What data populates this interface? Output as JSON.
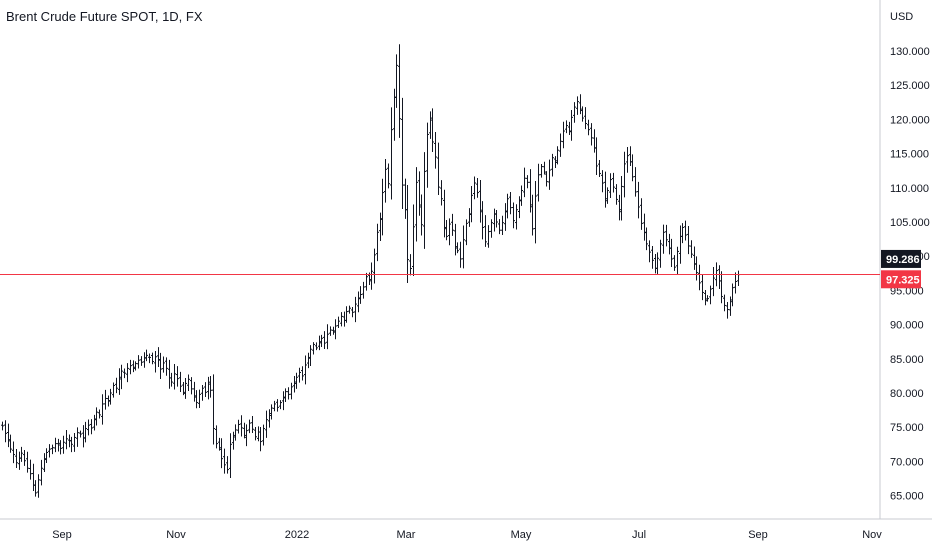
{
  "chart_data": {
    "type": "ohlc",
    "title": "Brent Crude Future SPOT, 1D, FX",
    "currency": "USD",
    "x_tick_labels": [
      "Sep",
      "Nov",
      "2022",
      "Mar",
      "May",
      "Jul",
      "Sep",
      "Nov"
    ],
    "y_tick_labels": [
      "65.000",
      "70.000",
      "75.000",
      "80.000",
      "85.000",
      "90.000",
      "95.000",
      "100.000",
      "105.000",
      "110.000",
      "115.000",
      "120.000",
      "125.000",
      "130.000"
    ],
    "ylim": [
      62,
      133
    ],
    "grid": false,
    "last_price_label": "97.325",
    "marker_price_label": "99.286",
    "reference_line": 97.325,
    "daily_closes": [
      75.2,
      74.1,
      73.0,
      71.8,
      71.0,
      69.8,
      70.5,
      71.2,
      70.1,
      69.0,
      68.2,
      66.5,
      65.4,
      67.3,
      69.0,
      70.4,
      71.3,
      71.8,
      72.0,
      72.6,
      72.4,
      71.9,
      72.8,
      73.3,
      73.0,
      72.5,
      73.5,
      74.2,
      74.0,
      73.4,
      74.8,
      75.3,
      74.9,
      76.1,
      77.2,
      76.8,
      78.4,
      79.2,
      78.9,
      80.0,
      81.1,
      80.7,
      82.3,
      83.2,
      82.9,
      83.6,
      84.0,
      83.6,
      84.3,
      84.8,
      84.5,
      85.1,
      85.5,
      85.2,
      84.6,
      85.3,
      84.8,
      83.5,
      84.4,
      83.6,
      82.2,
      81.6,
      82.8,
      82.1,
      81.0,
      80.1,
      81.4,
      82.0,
      80.6,
      79.4,
      78.6,
      79.8,
      80.7,
      80.1,
      81.3,
      80.4,
      74.8,
      72.6,
      72.0,
      70.4,
      69.5,
      68.8,
      72.5,
      73.8,
      74.6,
      75.4,
      74.9,
      73.8,
      74.5,
      75.6,
      74.7,
      73.6,
      74.3,
      72.9,
      74.8,
      76.1,
      77.0,
      77.8,
      78.4,
      77.9,
      78.6,
      79.4,
      80.2,
      79.8,
      80.9,
      81.6,
      82.3,
      83.0,
      82.5,
      84.1,
      85.2,
      86.4,
      87.1,
      86.6,
      87.5,
      88.0,
      87.3,
      88.6,
      89.2,
      88.9,
      89.8,
      90.5,
      91.2,
      90.6,
      91.9,
      92.4,
      91.8,
      93.0,
      93.9,
      94.4,
      95.5,
      97.0,
      96.4,
      97.8,
      100.2,
      103.5,
      105.5,
      109.3,
      112.7,
      110.6,
      118.5,
      123.2,
      127.9,
      120.1,
      110.4,
      106.8,
      99.5,
      98.2,
      104.3,
      110.8,
      107.2,
      104.6,
      112.4,
      117.8,
      119.9,
      116.7,
      114.5,
      110.1,
      108.4,
      104.2,
      102.9,
      104.7,
      103.8,
      101.2,
      100.8,
      99.6,
      102.4,
      104.8,
      106.1,
      108.9,
      110.7,
      109.3,
      106.5,
      104.2,
      102.1,
      103.6,
      104.9,
      106.2,
      105.0,
      103.8,
      104.9,
      106.6,
      108.4,
      107.1,
      105.2,
      106.8,
      108.1,
      109.6,
      111.4,
      110.8,
      107.5,
      104.0,
      108.8,
      111.9,
      113.1,
      112.3,
      110.9,
      112.6,
      114.4,
      113.7,
      115.5,
      116.8,
      118.3,
      119.1,
      118.2,
      120.3,
      121.8,
      122.6,
      121.5,
      120.2,
      119.4,
      118.5,
      117.3,
      115.8,
      113.2,
      112.1,
      110.7,
      108.4,
      109.6,
      111.2,
      110.1,
      108.3,
      106.8,
      110.2,
      113.5,
      114.7,
      113.8,
      111.6,
      109.4,
      107.2,
      104.8,
      103.5,
      101.8,
      100.6,
      99.4,
      98.2,
      99.7,
      101.8,
      103.5,
      102.4,
      101.2,
      99.6,
      98.4,
      100.7,
      102.9,
      104.2,
      103.1,
      101.5,
      100.3,
      98.9,
      97.6,
      96.1,
      94.7,
      93.5,
      93.8,
      95.2,
      96.8,
      97.9,
      96.4,
      94.1,
      92.8,
      92.2,
      93.6,
      95.4,
      96.3,
      97.3
    ]
  }
}
